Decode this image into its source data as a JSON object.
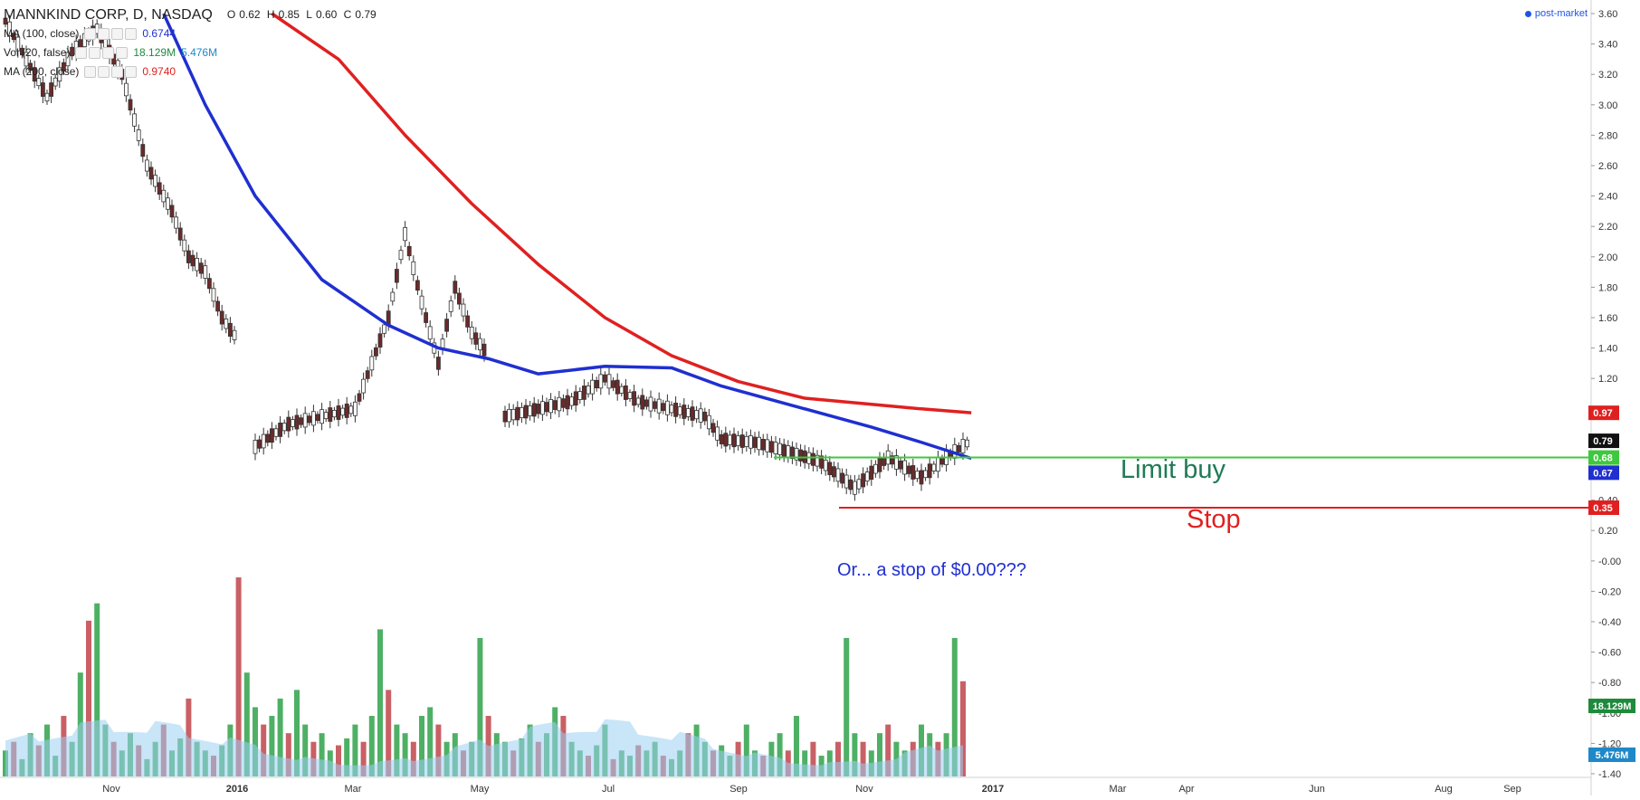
{
  "header": {
    "symbol_title": "MANNKIND CORP, D, NASDAQ",
    "ohlc": {
      "o_label": "O",
      "o": "0.62",
      "h_label": "H",
      "h": "0.85",
      "l_label": "L",
      "l": "0.60",
      "c_label": "C",
      "c": "0.79"
    },
    "indicators": [
      {
        "name": "MA (100, close)",
        "value": "0.6744",
        "color": "#1f2fd0"
      },
      {
        "name": "Vol (20, false)",
        "value": "18.129M",
        "value2": "5.476M",
        "color": "#1e8a3c",
        "color2": "#1e88c8"
      },
      {
        "name": "MA (200, close)",
        "value": "0.9740",
        "color": "#e02020"
      }
    ],
    "post_market": "post-market"
  },
  "annotations": {
    "limit_buy": "Limit buy",
    "stop": "Stop",
    "stop_question": "Or... a stop of $0.00???"
  },
  "colors": {
    "up": "#ffffff",
    "down": "#6b2a2a",
    "wick": "#333333",
    "ma100": "#1f2fd0",
    "ma200": "#e02020",
    "limit": "#3ec83e",
    "stop": "#e02020",
    "vol_up": "#2fa24a",
    "vol_down": "#c0444a",
    "vol_ma": "#9cd0f2"
  },
  "chart_data": {
    "type": "line",
    "title": "MANNKIND CORP, D, NASDAQ",
    "x_tick_labels": [
      "Nov",
      "2016",
      "Mar",
      "May",
      "Jul",
      "Sep",
      "Nov",
      "2017",
      "Mar",
      "Apr",
      "Jun",
      "Aug",
      "Sep"
    ],
    "y_tick_labels": [
      "3.60",
      "3.40",
      "3.20",
      "3.00",
      "2.80",
      "2.60",
      "2.40",
      "2.20",
      "2.00",
      "1.80",
      "1.60",
      "1.40",
      "1.20",
      "1.00",
      "0.80",
      "0.60",
      "0.40",
      "0.20",
      "-0.00",
      "-0.20",
      "-0.40",
      "-0.60",
      "-0.80",
      "-1.00",
      "-1.20",
      "-1.40"
    ],
    "ylim": [
      -1.4,
      3.6
    ],
    "price_labels": [
      {
        "text": "0.97",
        "value": 0.974,
        "color": "#e02020"
      },
      {
        "text": "0.79",
        "value": 0.79,
        "color": "#111111"
      },
      {
        "text": "0.68",
        "value": 0.68,
        "color": "#3ec83e"
      },
      {
        "text": "0.67",
        "value": 0.6744,
        "color": "#1f2fd0"
      },
      {
        "text": "0.35",
        "value": 0.35,
        "color": "#e02020"
      }
    ],
    "volume_labels": [
      {
        "text": "18.129M",
        "color": "#1e8a3c"
      },
      {
        "text": "5.476M",
        "color": "#1e88c8"
      }
    ],
    "series": [
      {
        "name": "MANNKIND CORP",
        "kind": "price",
        "x_range": [
          "2015-10",
          "2016-12"
        ],
        "values": [
          [
            0,
            3.55
          ],
          [
            3,
            3.25
          ],
          [
            5,
            3.05
          ],
          [
            8,
            3.35
          ],
          [
            11,
            3.5
          ],
          [
            14,
            3.2
          ],
          [
            17,
            2.6
          ],
          [
            20,
            2.3
          ],
          [
            22,
            2.0
          ],
          [
            24,
            1.9
          ],
          [
            26,
            1.6
          ],
          [
            27,
            1.52
          ],
          [
            28,
            1.45
          ],
          [
            0,
            0
          ],
          [
            30,
            0.75
          ],
          [
            34,
            0.9
          ],
          [
            38,
            0.95
          ],
          [
            42,
            1.0
          ],
          [
            46,
            1.6
          ],
          [
            48,
            2.15
          ],
          [
            50,
            1.7
          ],
          [
            52,
            1.3
          ],
          [
            54,
            1.8
          ],
          [
            56,
            1.5
          ],
          [
            58,
            1.35
          ],
          [
            0,
            0
          ],
          [
            60,
            0.95
          ],
          [
            64,
            1.0
          ],
          [
            68,
            1.05
          ],
          [
            72,
            1.2
          ],
          [
            76,
            1.05
          ],
          [
            80,
            1.0
          ],
          [
            84,
            0.95
          ],
          [
            86,
            0.8
          ],
          [
            90,
            0.78
          ],
          [
            94,
            0.72
          ],
          [
            98,
            0.65
          ],
          [
            102,
            0.48
          ],
          [
            106,
            0.68
          ],
          [
            110,
            0.55
          ],
          [
            114,
            0.72
          ],
          [
            116,
            0.79
          ]
        ]
      },
      {
        "name": "MA (100, close)",
        "kind": "ma100",
        "values": [
          [
            19,
            3.6
          ],
          [
            24,
            3.0
          ],
          [
            30,
            2.4
          ],
          [
            38,
            1.85
          ],
          [
            46,
            1.55
          ],
          [
            52,
            1.4
          ],
          [
            58,
            1.33
          ],
          [
            64,
            1.23
          ],
          [
            72,
            1.28
          ],
          [
            80,
            1.27
          ],
          [
            86,
            1.15
          ],
          [
            94,
            1.03
          ],
          [
            104,
            0.88
          ],
          [
            110,
            0.78
          ],
          [
            116,
            0.6744
          ]
        ]
      },
      {
        "name": "MA (200, close)",
        "kind": "ma200",
        "values": [
          [
            32,
            3.6
          ],
          [
            40,
            3.3
          ],
          [
            48,
            2.8
          ],
          [
            56,
            2.35
          ],
          [
            64,
            1.95
          ],
          [
            72,
            1.6
          ],
          [
            80,
            1.35
          ],
          [
            88,
            1.18
          ],
          [
            96,
            1.07
          ],
          [
            104,
            1.03
          ],
          [
            110,
            1.0
          ],
          [
            116,
            0.974
          ]
        ]
      },
      {
        "name": "Vol (20, false)",
        "kind": "volume",
        "values": [
          0.15,
          0.2,
          0.1,
          0.25,
          0.18,
          0.3,
          0.12,
          0.35,
          0.2,
          0.6,
          0.9,
          1.0,
          0.3,
          0.2,
          0.15,
          0.25,
          0.18,
          0.1,
          0.2,
          0.3,
          0.15,
          0.22,
          0.45,
          0.2,
          0.15,
          0.12,
          0.18,
          0.3,
          1.15,
          0.6,
          0.4,
          0.3,
          0.35,
          0.45,
          0.25,
          0.5,
          0.3,
          0.2,
          0.25,
          0.15,
          0.18,
          0.22,
          0.3,
          0.2,
          0.35,
          0.85,
          0.5,
          0.3,
          0.25,
          0.2,
          0.35,
          0.4,
          0.3,
          0.2,
          0.25,
          0.15,
          0.2,
          0.8,
          0.35,
          0.25,
          0.2,
          0.15,
          0.22,
          0.3,
          0.2,
          0.25,
          0.4,
          0.35,
          0.2,
          0.15,
          0.12,
          0.18,
          0.3,
          0.1,
          0.15,
          0.12,
          0.18,
          0.15,
          0.2,
          0.12,
          0.1,
          0.15,
          0.25,
          0.3,
          0.2,
          0.15,
          0.18,
          0.12,
          0.2,
          0.3,
          0.15,
          0.12,
          0.2,
          0.25,
          0.15,
          0.35,
          0.15,
          0.2,
          0.12,
          0.15,
          0.2,
          0.8,
          0.25,
          0.2,
          0.15,
          0.25,
          0.3,
          0.2,
          0.15,
          0.2,
          0.3,
          0.25,
          0.2,
          0.25,
          0.8,
          0.55
        ]
      }
    ],
    "levels": [
      {
        "name": "Limit buy",
        "value": 0.68
      },
      {
        "name": "Stop",
        "value": 0.35
      }
    ]
  }
}
